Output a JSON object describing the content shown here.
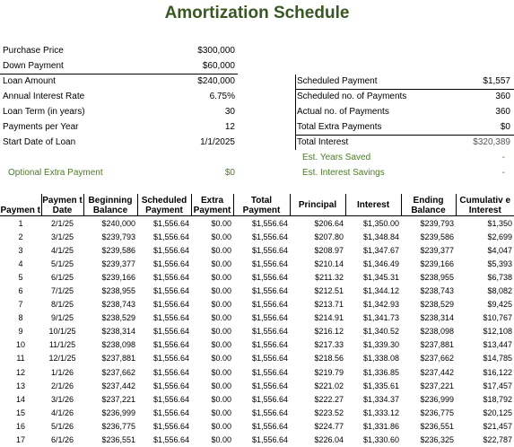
{
  "title": "Amortization Schedule",
  "left_summary": [
    {
      "label": "Purchase Price",
      "value": "$300,000"
    },
    {
      "label": "Down Payment",
      "value": "$60,000"
    },
    {
      "label": "Loan Amount",
      "value": "$240,000"
    },
    {
      "label": "Annual Interest Rate",
      "value": "6.75%"
    },
    {
      "label": "Loan Term (in years)",
      "value": "30"
    },
    {
      "label": "Payments per Year",
      "value": "12"
    },
    {
      "label": "Start Date of Loan",
      "value": "1/1/2025"
    }
  ],
  "extra_payment": {
    "label": "Optional Extra Payment",
    "value": "$0"
  },
  "right_summary": [
    {
      "label": "Scheduled Payment",
      "value": "$1,557"
    },
    {
      "label": "Scheduled no. of Payments",
      "value": "360"
    },
    {
      "label": "Actual no. of Payments",
      "value": "360"
    },
    {
      "label": "Total Extra Payments",
      "value": "$0"
    },
    {
      "label": "Total Interest",
      "value": "$320,389"
    },
    {
      "label": "Est. Years Saved",
      "value": "-"
    },
    {
      "label": "Est. Interest Savings",
      "value": "-"
    }
  ],
  "columns": [
    "Paymen t",
    "Paymen t Date",
    "Beginning Balance",
    "Scheduled Payment",
    "Extra Payment",
    "Total Payment",
    "Principal",
    "Interest",
    "Ending Balance",
    "Cumulativ e Interest"
  ],
  "rows": [
    [
      "1",
      "2/1/25",
      "$240,000",
      "$1,556.64",
      "$0.00",
      "$1,556.64",
      "$206.64",
      "$1,350.00",
      "$239,793",
      "$1,350"
    ],
    [
      "2",
      "3/1/25",
      "$239,793",
      "$1,556.64",
      "$0.00",
      "$1,556.64",
      "$207.80",
      "$1,348.84",
      "$239,586",
      "$2,699"
    ],
    [
      "3",
      "4/1/25",
      "$239,586",
      "$1,556.64",
      "$0.00",
      "$1,556.64",
      "$208.97",
      "$1,347.67",
      "$239,377",
      "$4,047"
    ],
    [
      "4",
      "5/1/25",
      "$239,377",
      "$1,556.64",
      "$0.00",
      "$1,556.64",
      "$210.14",
      "$1,346.49",
      "$239,166",
      "$5,393"
    ],
    [
      "5",
      "6/1/25",
      "$239,166",
      "$1,556.64",
      "$0.00",
      "$1,556.64",
      "$211.32",
      "$1,345.31",
      "$238,955",
      "$6,738"
    ],
    [
      "6",
      "7/1/25",
      "$238,955",
      "$1,556.64",
      "$0.00",
      "$1,556.64",
      "$212.51",
      "$1,344.12",
      "$238,743",
      "$8,082"
    ],
    [
      "7",
      "8/1/25",
      "$238,743",
      "$1,556.64",
      "$0.00",
      "$1,556.64",
      "$213.71",
      "$1,342.93",
      "$238,529",
      "$9,425"
    ],
    [
      "8",
      "9/1/25",
      "$238,529",
      "$1,556.64",
      "$0.00",
      "$1,556.64",
      "$214.91",
      "$1,341.73",
      "$238,314",
      "$10,767"
    ],
    [
      "9",
      "10/1/25",
      "$238,314",
      "$1,556.64",
      "$0.00",
      "$1,556.64",
      "$216.12",
      "$1,340.52",
      "$238,098",
      "$12,108"
    ],
    [
      "10",
      "11/1/25",
      "$238,098",
      "$1,556.64",
      "$0.00",
      "$1,556.64",
      "$217.33",
      "$1,339.30",
      "$237,881",
      "$13,447"
    ],
    [
      "11",
      "12/1/25",
      "$237,881",
      "$1,556.64",
      "$0.00",
      "$1,556.64",
      "$218.56",
      "$1,338.08",
      "$237,662",
      "$14,785"
    ],
    [
      "12",
      "1/1/26",
      "$237,662",
      "$1,556.64",
      "$0.00",
      "$1,556.64",
      "$219.79",
      "$1,336.85",
      "$237,442",
      "$16,122"
    ],
    [
      "13",
      "2/1/26",
      "$237,442",
      "$1,556.64",
      "$0.00",
      "$1,556.64",
      "$221.02",
      "$1,335.61",
      "$237,221",
      "$17,457"
    ],
    [
      "14",
      "3/1/26",
      "$237,221",
      "$1,556.64",
      "$0.00",
      "$1,556.64",
      "$222.27",
      "$1,334.37",
      "$236,999",
      "$18,792"
    ],
    [
      "15",
      "4/1/26",
      "$236,999",
      "$1,556.64",
      "$0.00",
      "$1,556.64",
      "$223.52",
      "$1,333.12",
      "$236,775",
      "$20,125"
    ],
    [
      "16",
      "5/1/26",
      "$236,775",
      "$1,556.64",
      "$0.00",
      "$1,556.64",
      "$224.77",
      "$1,331.86",
      "$236,551",
      "$21,457"
    ],
    [
      "17",
      "6/1/26",
      "$236,551",
      "$1,556.64",
      "$0.00",
      "$1,556.64",
      "$226.04",
      "$1,330.60",
      "$236,325",
      "$22,787"
    ]
  ],
  "colors": {
    "title": "#385723",
    "extra_payment": "#4e7a2a"
  }
}
